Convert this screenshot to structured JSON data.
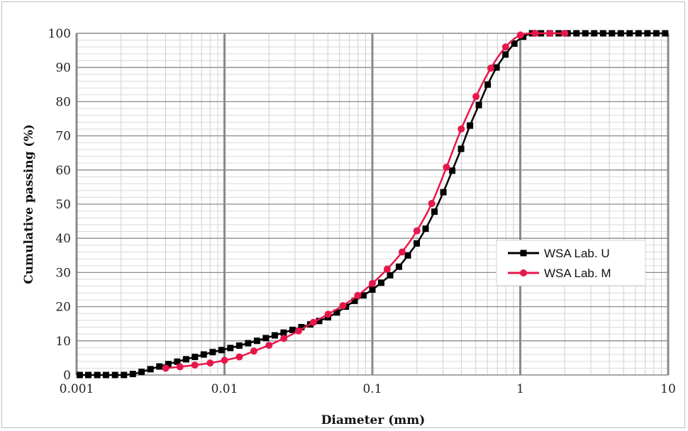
{
  "chart_data": {
    "type": "scatter",
    "xlabel": "Diameter (mm)",
    "ylabel": "Cumulative passing (%)",
    "xscale": "log",
    "xlim": [
      0.001,
      10
    ],
    "ylim": [
      0,
      100
    ],
    "x_ticks": [
      "0.001",
      "0.01",
      "0.1",
      "1",
      "10"
    ],
    "y_ticks": [
      "0",
      "10",
      "20",
      "30",
      "40",
      "50",
      "60",
      "70",
      "80",
      "90",
      "100"
    ],
    "grid": true,
    "legend_position": "right-center",
    "series": [
      {
        "name": "WSA Lab. U",
        "color": "#000000",
        "marker": "square",
        "x": [
          0.00105,
          0.0012,
          0.00138,
          0.00158,
          0.00182,
          0.00209,
          0.0024,
          0.00275,
          0.00316,
          0.00363,
          0.00417,
          0.00479,
          0.0055,
          0.00631,
          0.00724,
          0.00832,
          0.00955,
          0.01096,
          0.01259,
          0.01445,
          0.0166,
          0.01905,
          0.02188,
          0.02512,
          0.02884,
          0.03311,
          0.03802,
          0.04365,
          0.05012,
          0.05754,
          0.06607,
          0.07586,
          0.0871,
          0.1,
          0.11482,
          0.13183,
          0.15136,
          0.17378,
          0.19953,
          0.22909,
          0.26303,
          0.302,
          0.34674,
          0.39811,
          0.45709,
          0.52481,
          0.60256,
          0.69183,
          0.79433,
          0.91201,
          1.04713,
          1.20226,
          1.38038,
          1.58489,
          1.8197,
          2.0893,
          2.39883,
          2.75423,
          3.16228,
          3.63078,
          4.16869,
          4.7863,
          5.49541,
          6.30957,
          7.24436,
          8.31764,
          9.54993
        ],
        "y": [
          0,
          0,
          0,
          0,
          0,
          0,
          0.3,
          0.9,
          1.7,
          2.5,
          3.2,
          3.9,
          4.6,
          5.3,
          6.0,
          6.7,
          7.3,
          7.9,
          8.6,
          9.3,
          10.0,
          10.8,
          11.6,
          12.4,
          13.2,
          14.0,
          14.8,
          15.8,
          16.9,
          18.3,
          20.0,
          21.7,
          23.3,
          25.0,
          27.0,
          29.2,
          31.7,
          35.0,
          38.5,
          42.8,
          47.8,
          53.5,
          59.8,
          66.2,
          73.0,
          79.0,
          85.0,
          90.0,
          93.8,
          97.0,
          99.0,
          100,
          100,
          100,
          100,
          100,
          100,
          100,
          100,
          100,
          100,
          100,
          100,
          100,
          100,
          100,
          100
        ]
      },
      {
        "name": "WSA Lab. M",
        "color": "#e8174b",
        "marker": "circle",
        "x": [
          0.004,
          0.005,
          0.0063,
          0.008,
          0.01,
          0.0126,
          0.0158,
          0.02,
          0.0252,
          0.0317,
          0.0399,
          0.0502,
          0.0632,
          0.0796,
          0.1,
          0.126,
          0.1589,
          0.2,
          0.252,
          0.317,
          0.399,
          0.502,
          0.632,
          0.796,
          1.002,
          1.262,
          1.589,
          2.0
        ],
        "y": [
          2.0,
          2.4,
          2.9,
          3.5,
          4.3,
          5.3,
          7.0,
          8.7,
          10.7,
          12.9,
          15.4,
          17.8,
          20.3,
          23.3,
          26.8,
          31.0,
          36.0,
          42.2,
          50.2,
          60.8,
          72.0,
          81.5,
          89.8,
          96.0,
          99.5,
          100,
          100,
          100
        ]
      }
    ]
  }
}
